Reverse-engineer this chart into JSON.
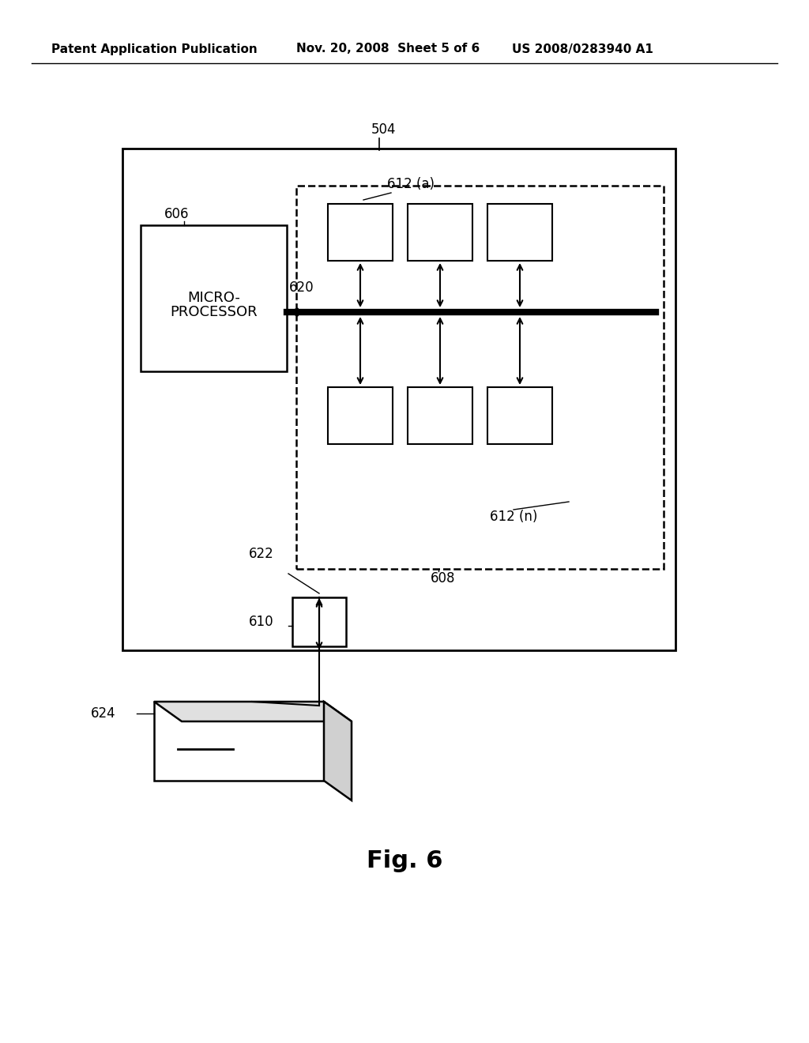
{
  "bg_color": "#ffffff",
  "header_left": "Patent Application Publication",
  "header_mid": "Nov. 20, 2008  Sheet 5 of 6",
  "header_right": "US 2008/0283940 A1",
  "fig_label": "Fig. 6",
  "label_504": "504",
  "label_606": "606",
  "label_620": "620",
  "label_622": "622",
  "label_610": "610",
  "label_612a": "612 (a)",
  "label_612n": "612 (n)",
  "label_608": "608",
  "label_624": "624",
  "micro_text_line1": "MICRO-",
  "micro_text_line2": "PROCESSOR"
}
